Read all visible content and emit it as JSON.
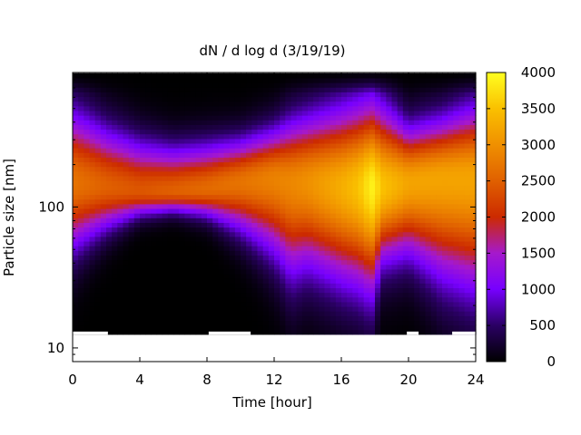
{
  "chart_data": {
    "type": "heatmap",
    "title": "dN / d log d (3/19/19)",
    "xlabel": "Time [hour]",
    "ylabel": "Particle size [nm]",
    "xlim": [
      0,
      24
    ],
    "ylim": [
      8,
      900
    ],
    "yscale": "log",
    "x_ticks": [
      0,
      4,
      8,
      12,
      16,
      20,
      24
    ],
    "y_ticks": [
      10,
      100
    ],
    "colorbar": {
      "min": 0,
      "max": 4000,
      "ticks": [
        0,
        500,
        1000,
        1500,
        2000,
        2500,
        3000,
        3500,
        4000
      ],
      "palette": [
        "#000000",
        "#2a0063",
        "#7700ff",
        "#a519cc",
        "#cc2a00",
        "#e06000",
        "#f09000",
        "#fac000",
        "#ffff20"
      ]
    },
    "data_extent": {
      "size_min_nm": 12.5,
      "size_max_nm": 890
    },
    "profile": {
      "time_h": [
        0,
        2,
        4,
        6,
        8,
        10,
        12,
        13,
        14,
        16,
        17,
        17.8,
        18.5,
        20,
        22,
        24
      ],
      "peak_size_nm": [
        150,
        140,
        130,
        130,
        135,
        150,
        160,
        150,
        150,
        140,
        140,
        140,
        140,
        150,
        160,
        160
      ],
      "peak_conc": [
        2700,
        2500,
        2400,
        2500,
        2600,
        2700,
        2850,
        2900,
        3000,
        3300,
        3500,
        3900,
        3500,
        3200,
        3200,
        3200
      ],
      "lower_edge_nm": [
        62,
        80,
        95,
        100,
        95,
        80,
        60,
        45,
        50,
        42,
        40,
        37,
        55,
        60,
        45,
        38
      ],
      "upper_edge_nm": [
        380,
        300,
        250,
        230,
        240,
        260,
        300,
        330,
        350,
        380,
        400,
        410,
        380,
        300,
        340,
        400
      ]
    },
    "gaps": [
      {
        "t0": 0,
        "t1": 2.1
      },
      {
        "t0": 8.1,
        "t1": 10.6
      },
      {
        "t0": 19.9,
        "t1": 20.6
      },
      {
        "t0": 22.6,
        "t1": 24
      }
    ]
  }
}
